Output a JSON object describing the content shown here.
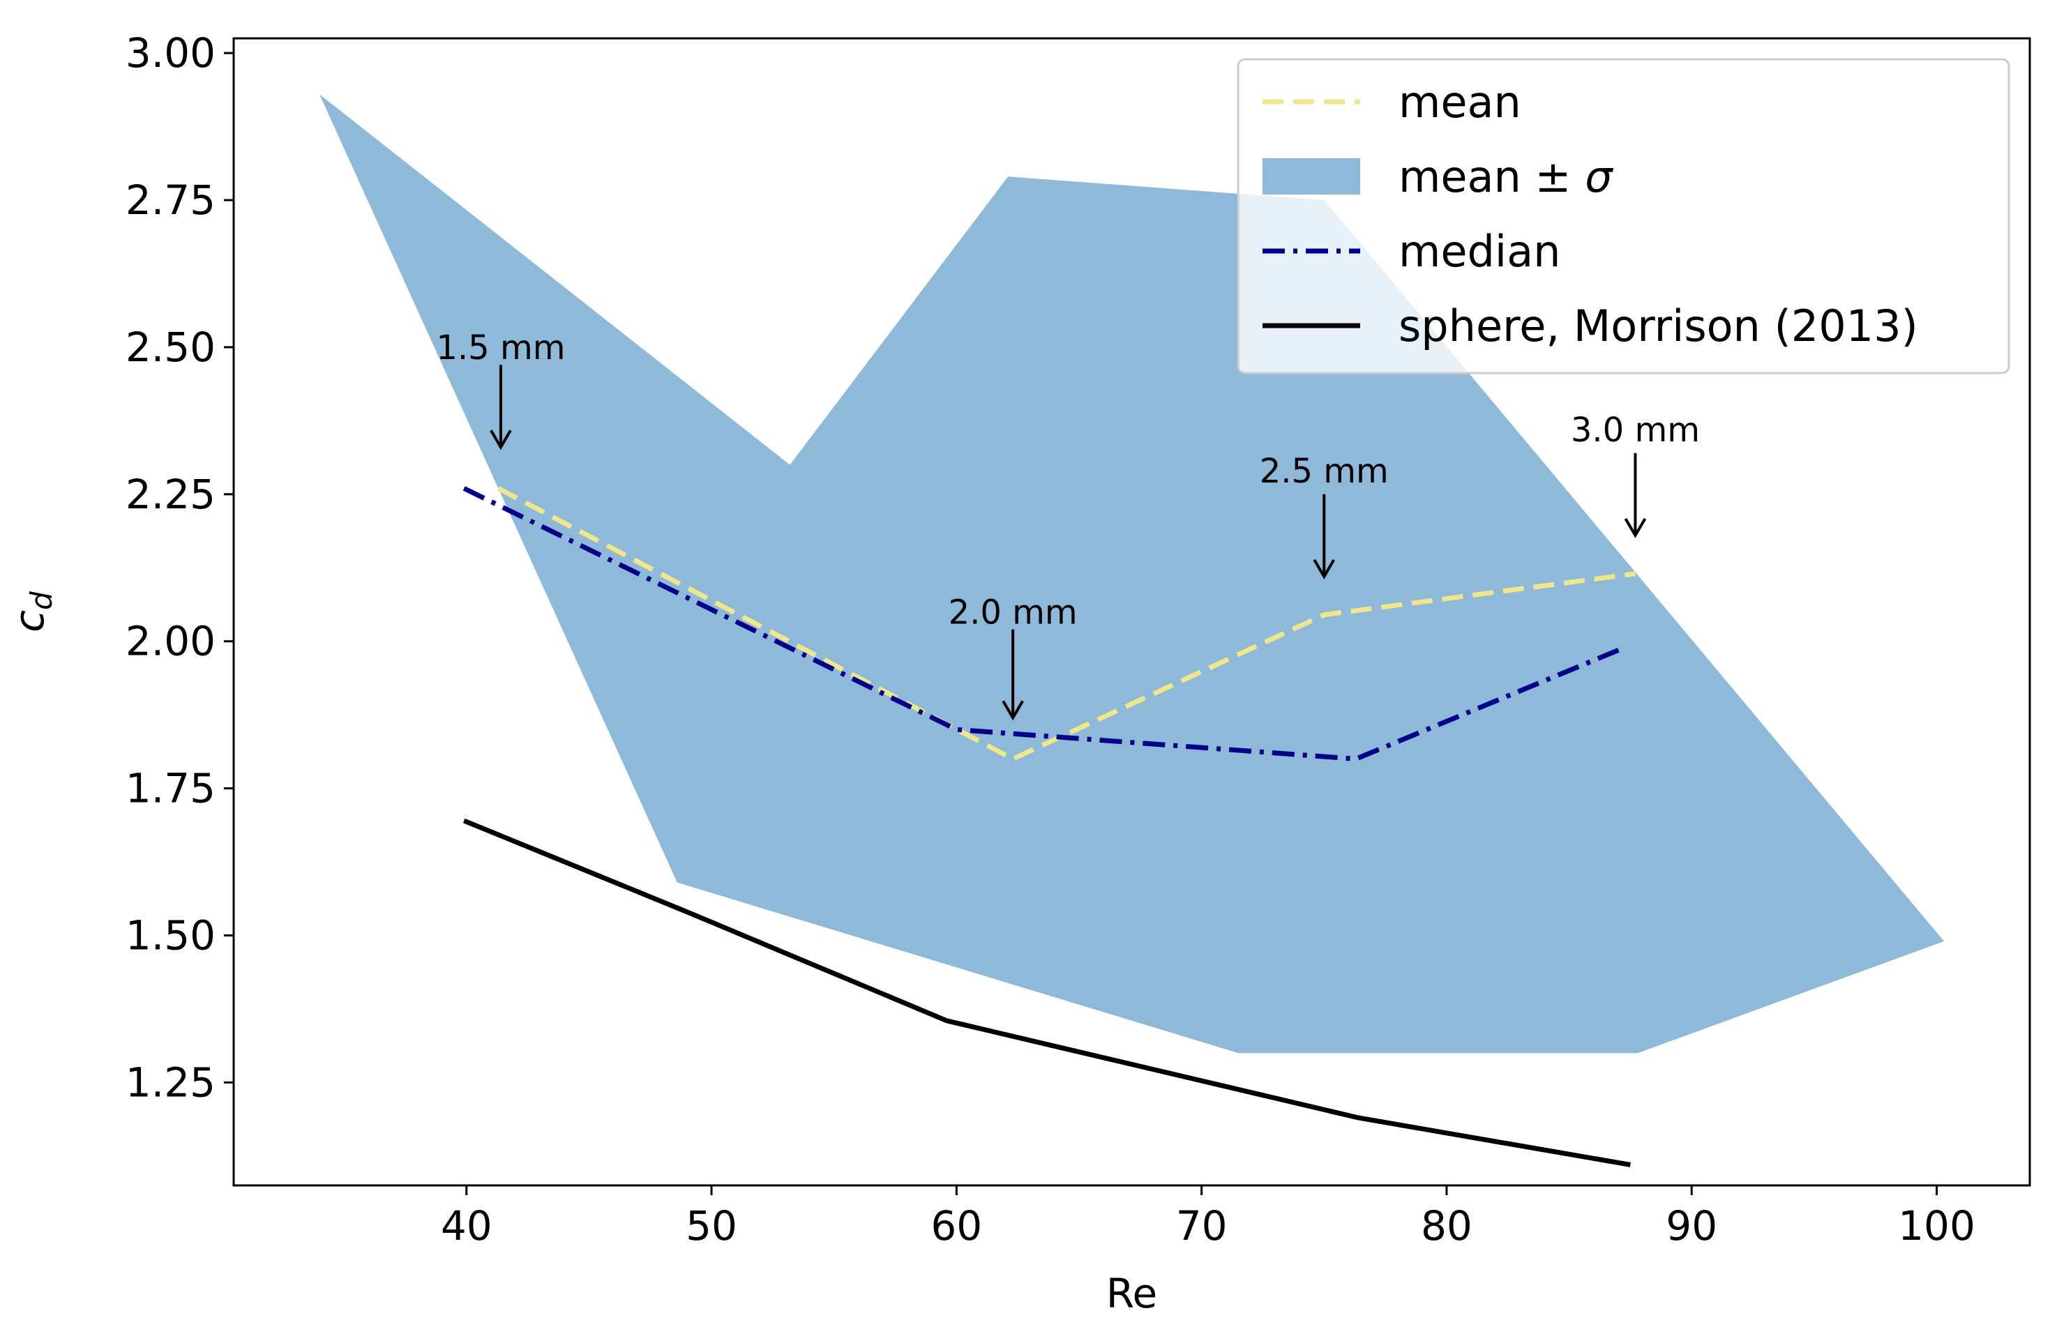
{
  "chart_data": {
    "type": "line",
    "title": "",
    "xlabel": "Re",
    "ylabel": "c",
    "ylabel_subscript": "d",
    "xlim": [
      30.5,
      103.8
    ],
    "ylim": [
      1.075,
      3.025
    ],
    "x_ticks": [
      40,
      50,
      60,
      70,
      80,
      90,
      100
    ],
    "x_tick_labels": [
      "40",
      "50",
      "60",
      "70",
      "80",
      "90",
      "100"
    ],
    "y_ticks": [
      1.25,
      1.5,
      1.75,
      2.0,
      2.25,
      2.5,
      2.75,
      3.0
    ],
    "y_tick_labels": [
      "1.25",
      "1.50",
      "1.75",
      "2.00",
      "2.25",
      "2.50",
      "2.75",
      "3.00"
    ],
    "grid": false,
    "legend_position": "top-right",
    "colors": {
      "mean": "#f0e68c",
      "band": "#8fb9d9",
      "median": "#00008b",
      "sphere": "#000000",
      "legend_border": "#cccccc"
    },
    "band": {
      "name": "mean ± σ",
      "legend_label_prefix": "mean ± ",
      "legend_label_symbol": "σ",
      "upper": [
        {
          "x": 34.0,
          "y": 2.93
        },
        {
          "x": 53.2,
          "y": 2.3
        },
        {
          "x": 62.1,
          "y": 2.79
        },
        {
          "x": 75.0,
          "y": 2.75
        },
        {
          "x": 100.3,
          "y": 1.49
        }
      ],
      "lower": [
        {
          "x": 100.3,
          "y": 1.49
        },
        {
          "x": 87.8,
          "y": 1.3
        },
        {
          "x": 71.5,
          "y": 1.3
        },
        {
          "x": 48.6,
          "y": 1.59
        },
        {
          "x": 34.0,
          "y": 2.93
        }
      ]
    },
    "series": [
      {
        "name": "mean",
        "style": "dashed",
        "points": [
          {
            "x": 41.3,
            "y": 2.26
          },
          {
            "x": 62.3,
            "y": 1.8
          },
          {
            "x": 75.0,
            "y": 2.045
          },
          {
            "x": 87.7,
            "y": 2.115
          }
        ]
      },
      {
        "name": "median",
        "style": "dashdot",
        "points": [
          {
            "x": 39.9,
            "y": 2.26
          },
          {
            "x": 60.0,
            "y": 1.85
          },
          {
            "x": 76.3,
            "y": 1.8
          },
          {
            "x": 87.3,
            "y": 1.99
          }
        ]
      },
      {
        "name": "sphere, Morrison (2013)",
        "style": "solid",
        "points": [
          {
            "x": 39.9,
            "y": 1.695
          },
          {
            "x": 49.0,
            "y": 1.54
          },
          {
            "x": 59.6,
            "y": 1.355
          },
          {
            "x": 76.4,
            "y": 1.19
          },
          {
            "x": 87.5,
            "y": 1.11
          }
        ]
      }
    ],
    "annotations": [
      {
        "text": "1.5 mm",
        "x": 41.4,
        "y_text": 2.48,
        "y_arrow_start": 2.47,
        "y_arrow_end": 2.33
      },
      {
        "text": "2.0 mm",
        "x": 62.3,
        "y_text": 2.03,
        "y_arrow_start": 2.02,
        "y_arrow_end": 1.87
      },
      {
        "text": "2.5 mm",
        "x": 75.0,
        "y_text": 2.27,
        "y_arrow_start": 2.25,
        "y_arrow_end": 2.11
      },
      {
        "text": "3.0 mm",
        "x": 87.7,
        "y_text": 2.34,
        "y_arrow_start": 2.32,
        "y_arrow_end": 2.18
      }
    ]
  }
}
